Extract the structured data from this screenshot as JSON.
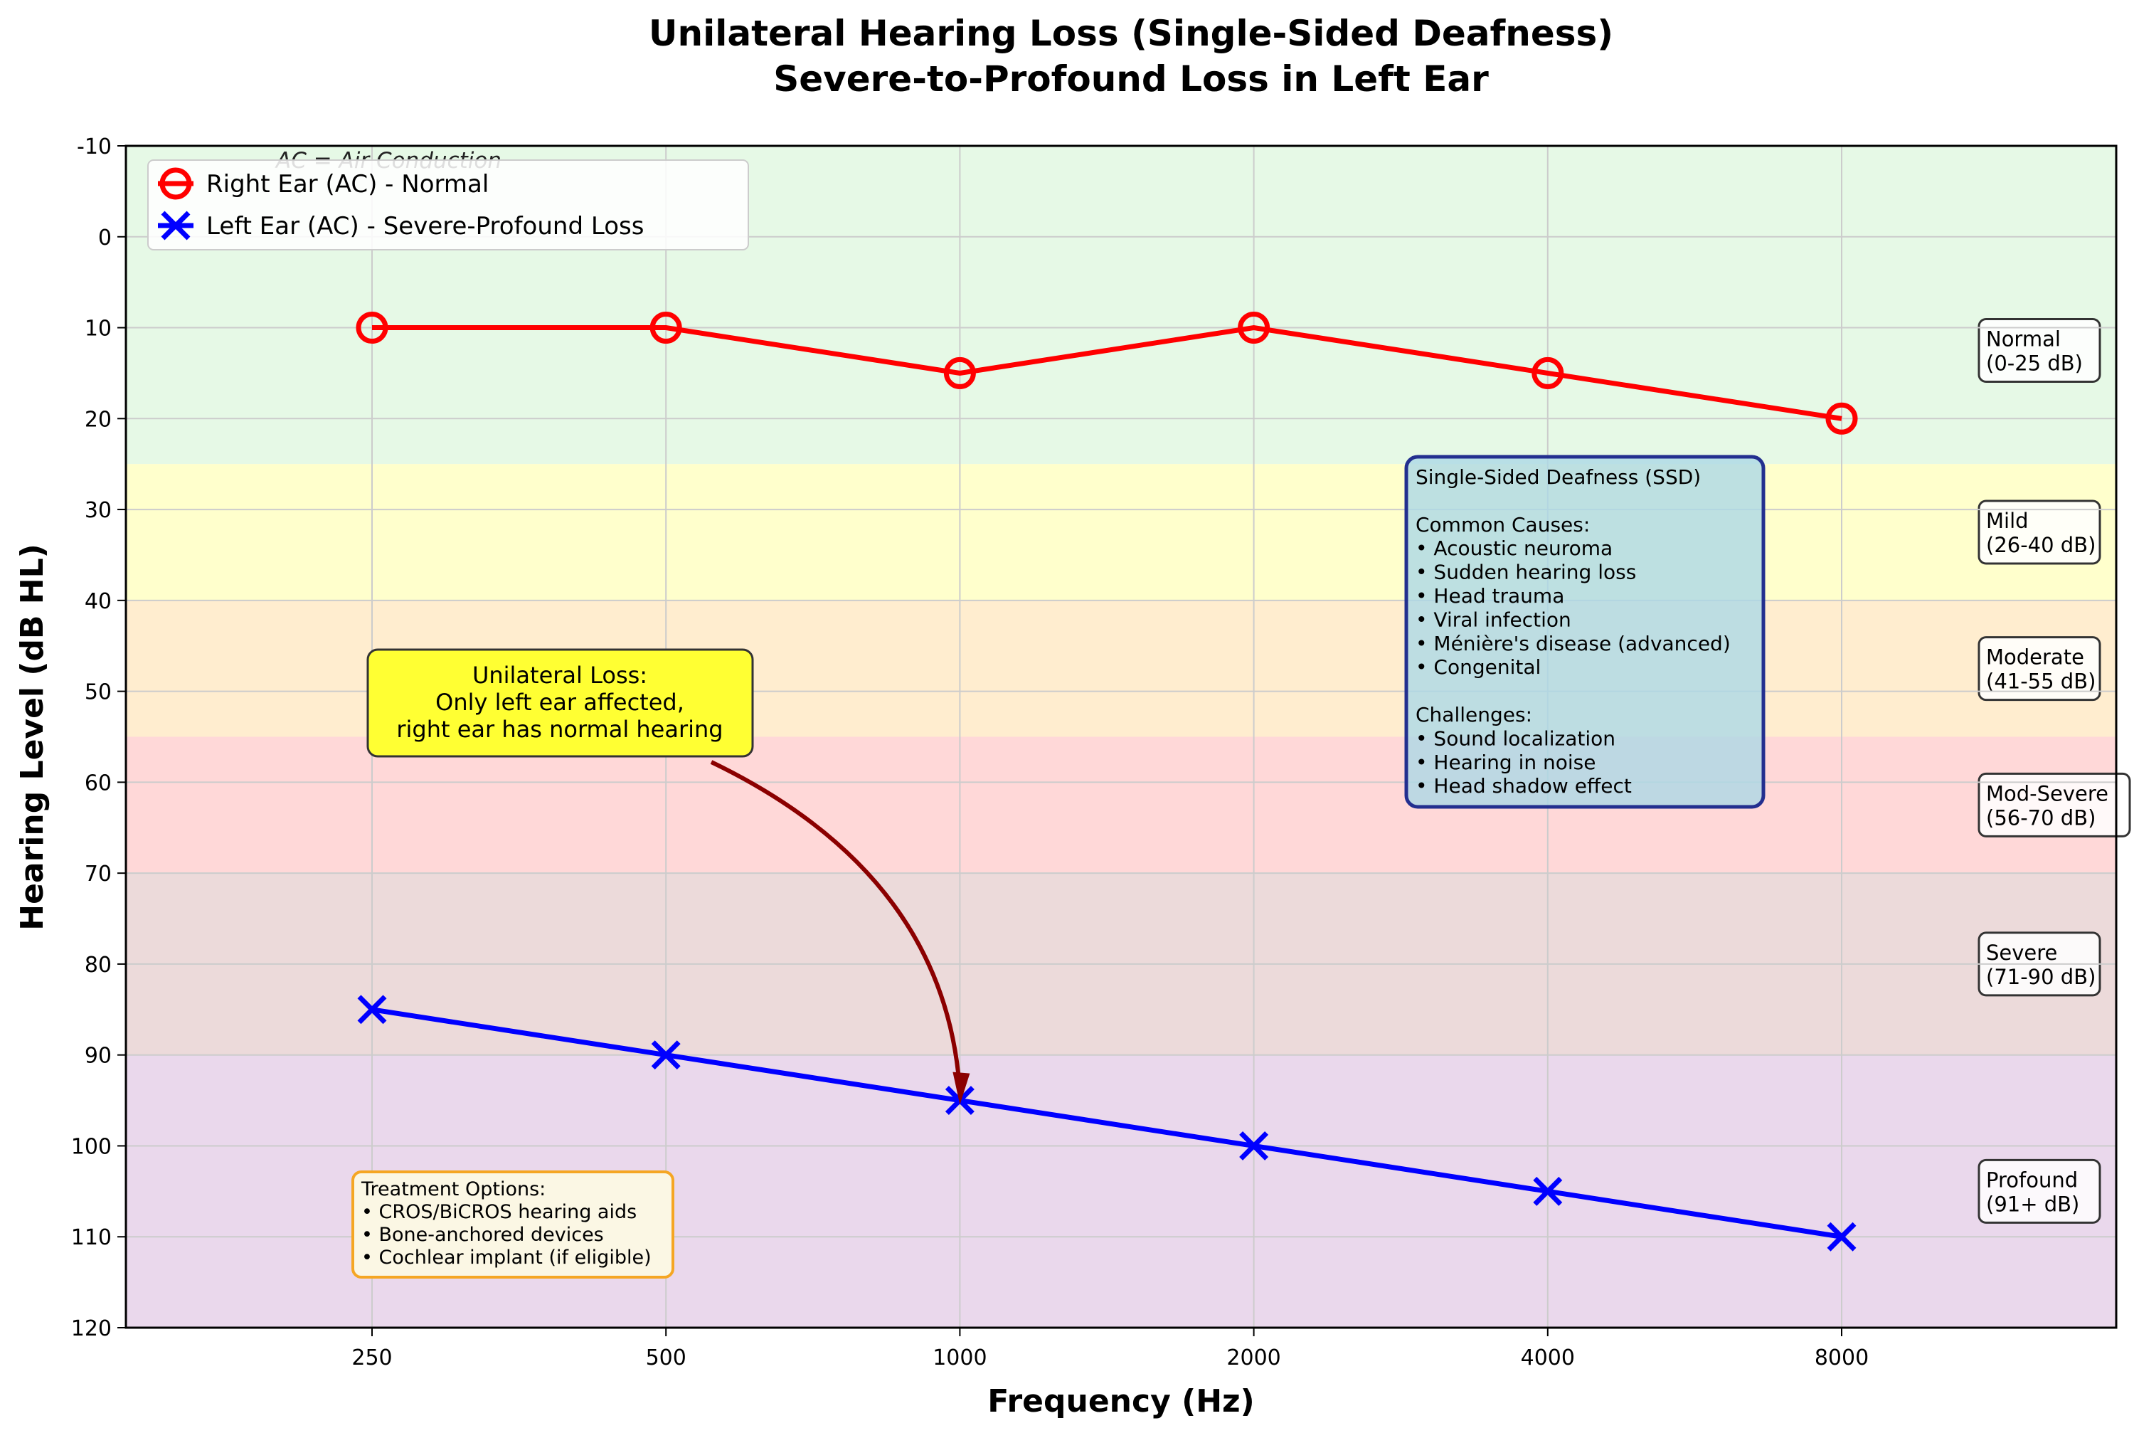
{
  "chart_data": {
    "type": "line",
    "title": "Unilateral Hearing Loss (Single-Sided Deafness)",
    "subtitle": "Severe-to-Profound Loss in Left Ear",
    "xlabel": "Frequency (Hz)",
    "ylabel": "Hearing Level (dB HL)",
    "categories": [
      "250",
      "500",
      "1000",
      "2000",
      "4000",
      "8000"
    ],
    "ylim": [
      120,
      -10
    ],
    "y_inverted": true,
    "yticks": [
      "-10",
      "0",
      "10",
      "20",
      "30",
      "40",
      "50",
      "60",
      "70",
      "80",
      "90",
      "100",
      "110",
      "120"
    ],
    "grid": true,
    "legend_placement": "top-left",
    "series": [
      {
        "name": "Right Ear (AC) - Normal",
        "values": [
          10,
          10,
          15,
          10,
          15,
          20
        ],
        "color": "#ff0000",
        "marker": "circle-open"
      },
      {
        "name": "Left Ear (AC) - Severe-Profound Loss",
        "values": [
          85,
          90,
          95,
          100,
          105,
          110
        ],
        "color": "#0000ff",
        "marker": "x"
      }
    ],
    "bands": [
      {
        "label": "Normal",
        "range_label": "(0-25 dB)",
        "from": -10,
        "to": 25,
        "color": "#e6f9e6"
      },
      {
        "label": "Mild",
        "range_label": "(26-40 dB)",
        "from": 25,
        "to": 40,
        "color": "#ffffcc"
      },
      {
        "label": "Moderate",
        "range_label": "(41-55 dB)",
        "from": 40,
        "to": 55,
        "color": "#ffedcf"
      },
      {
        "label": "Mod-Severe",
        "range_label": "(56-70 dB)",
        "from": 55,
        "to": 70,
        "color": "#ffd8d8"
      },
      {
        "label": "Severe",
        "range_label": "(71-90 dB)",
        "from": 70,
        "to": 90,
        "color": "#ecdada"
      },
      {
        "label": "Profound",
        "range_label": "(91+ dB)",
        "from": 90,
        "to": 120,
        "color": "#ead8ec"
      }
    ],
    "annotations": {
      "ac_note": "AC = Air Conduction",
      "unilateral": [
        "Unilateral Loss:",
        "Only left ear affected,",
        "right ear has normal hearing"
      ],
      "unilateral_arrow_target": {
        "x": "1000",
        "y": 95
      },
      "ssd_box": [
        "Single-Sided Deafness (SSD)",
        "",
        "Common Causes:",
        "• Acoustic neuroma",
        "• Sudden hearing loss",
        "• Head trauma",
        "• Viral infection",
        "• Ménière's disease (advanced)",
        "• Congenital",
        "",
        "Challenges:",
        "• Sound localization",
        "• Hearing in noise",
        "• Head shadow effect"
      ],
      "treatment_box": [
        "Treatment Options:",
        "• CROS/BiCROS hearing aids",
        "• Bone-anchored devices",
        "• Cochlear implant (if eligible)"
      ]
    }
  }
}
